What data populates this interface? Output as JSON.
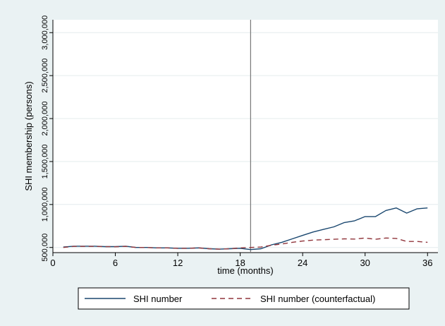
{
  "chart_data": {
    "type": "line",
    "xlabel": "time (months)",
    "ylabel": "SHI membership (persons)",
    "xlim": [
      0,
      37
    ],
    "ylim": [
      440000,
      3150000
    ],
    "xticks": [
      0,
      6,
      12,
      18,
      24,
      30,
      36
    ],
    "xtick_labels": [
      "0",
      "6",
      "12",
      "18",
      "24",
      "30",
      "36"
    ],
    "yticks": [
      500000,
      1000000,
      1500000,
      2000000,
      2500000,
      3000000
    ],
    "ytick_labels": [
      "500,000",
      "1,000,000",
      "1,500,000",
      "2,000,000",
      "2,500,000",
      "3,000,000"
    ],
    "grid": true,
    "vline_x": 19,
    "legend_position": "bottom",
    "colors": {
      "shi": "#1a476f",
      "counterfactual": "#90353b",
      "vline": "#777777",
      "grid": "#e4ecee",
      "frame": "#eaf2f3"
    },
    "x": [
      1,
      2,
      3,
      4,
      5,
      6,
      7,
      8,
      9,
      10,
      11,
      12,
      13,
      14,
      15,
      16,
      17,
      18,
      19,
      20,
      21,
      22,
      23,
      24,
      25,
      26,
      27,
      28,
      29,
      30,
      31,
      32,
      33,
      34,
      35,
      36
    ],
    "series": [
      {
        "name": "SHI number",
        "style": "solid",
        "values": [
          505000,
          515000,
          515000,
          515000,
          510000,
          510000,
          515000,
          500000,
          500000,
          495000,
          495000,
          490000,
          490000,
          495000,
          485000,
          480000,
          485000,
          490000,
          475000,
          485000,
          530000,
          560000,
          600000,
          640000,
          680000,
          710000,
          740000,
          790000,
          810000,
          860000,
          860000,
          930000,
          960000,
          900000,
          950000,
          960000
        ]
      },
      {
        "name": "SHI number (counterfactual)",
        "style": "dashed",
        "values": [
          500000,
          512000,
          512000,
          512000,
          510000,
          508000,
          512000,
          500000,
          500000,
          495000,
          495000,
          490000,
          490000,
          495000,
          485000,
          480000,
          485000,
          495000,
          500000,
          505000,
          525000,
          540000,
          560000,
          575000,
          585000,
          590000,
          595000,
          600000,
          598000,
          610000,
          595000,
          610000,
          605000,
          570000,
          570000,
          560000
        ]
      }
    ]
  }
}
